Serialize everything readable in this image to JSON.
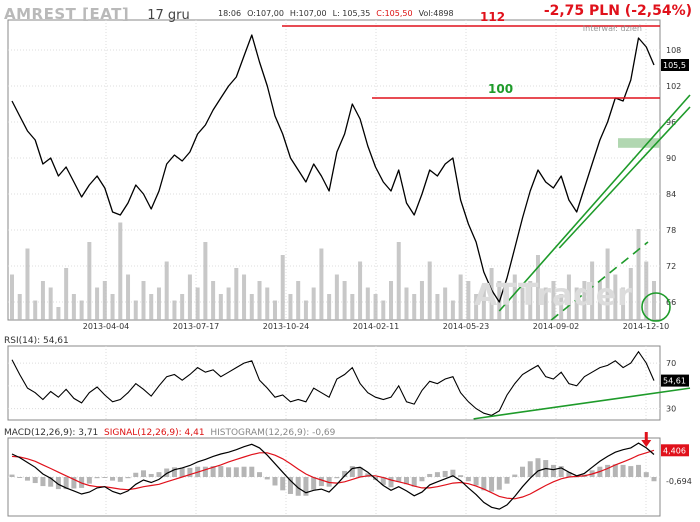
{
  "header": {
    "ticker": "AMREST [EAT]",
    "date": "17 gru",
    "time": "18:06",
    "open": "O:107,00",
    "high": "H:107,00",
    "low": "L: 105,35",
    "close": "C:105,50",
    "volume": "Vol:4898",
    "change": "-2,75 PLN (-2,54%)",
    "interval": "Interwał: dzień"
  },
  "watermark": "ATTrader",
  "rsi_label": "RSI(14): 54,61",
  "macd_label": {
    "macd": "MACD(12,26,9): 3,71",
    "signal": "SIGNAL(12,26,9): 4,41",
    "histogram": "HISTOGRAM(12,26,9): -0,69"
  },
  "colors": {
    "price_line": "#000000",
    "resistance": "#e0111b",
    "support_trend": "#1e9b2a",
    "support_zone": "#a9d3a9",
    "volume": "#b5b5b5",
    "grid": "#dcdcdc",
    "macd": "#000000",
    "signal": "#e0111b",
    "histogram": "#b5b5b5"
  },
  "chart_data": [
    {
      "type": "line",
      "panel": "price",
      "x_ticks": [
        "2013-04-04",
        "2013-07-17",
        "2013-10-24",
        "2014-02-11",
        "2014-05-23",
        "2014-09-02",
        "2014-12-10"
      ],
      "y_ticks": [
        66,
        72,
        78,
        84,
        90,
        96,
        102,
        108
      ],
      "ylim": [
        63,
        113
      ],
      "last_value_label": "105,5",
      "levels": [
        {
          "label": "112",
          "value": 112,
          "from": "2013-10-24",
          "to": "2014-12-17"
        },
        {
          "label": "100",
          "value": 100,
          "from": "2014-02-11",
          "to": "2014-12-17"
        }
      ],
      "series": [
        {
          "values": [
            99.5,
            97,
            94.5,
            93,
            89,
            90,
            87,
            88.5,
            86,
            83.5,
            85.5,
            87,
            85,
            81,
            80.5,
            82.5,
            85.5,
            84,
            81.5,
            84.5,
            89,
            90.5,
            89.5,
            91,
            94,
            95.5,
            98,
            100,
            102,
            103.5,
            107,
            110.5,
            106,
            102,
            97,
            94,
            90,
            88,
            86,
            89,
            87,
            84.5,
            91,
            94,
            99,
            96.5,
            92,
            88.5,
            86,
            84.5,
            88,
            82.5,
            80.5,
            84,
            88,
            87,
            89,
            90,
            83,
            79,
            76,
            71,
            68,
            66,
            70,
            75,
            80,
            84.5,
            88,
            86,
            85,
            87,
            83,
            81,
            85,
            89,
            93,
            96,
            100,
            99.5,
            103,
            110,
            108.5,
            105.5
          ]
        }
      ]
    },
    {
      "type": "bar",
      "panel": "volume",
      "series": [
        {
          "values": [
            0.35,
            0.2,
            0.55,
            0.15,
            0.3,
            0.25,
            0.1,
            0.4,
            0.2,
            0.15,
            0.6,
            0.25,
            0.3,
            0.2,
            0.75,
            0.35,
            0.15,
            0.3,
            0.2,
            0.25,
            0.45,
            0.15,
            0.2,
            0.35,
            0.25,
            0.6,
            0.3,
            0.2,
            0.25,
            0.4,
            0.35,
            0.2,
            0.3,
            0.25,
            0.15,
            0.5,
            0.2,
            0.3,
            0.15,
            0.25,
            0.55,
            0.2,
            0.35,
            0.3,
            0.2,
            0.45,
            0.25,
            0.2,
            0.15,
            0.3,
            0.6,
            0.25,
            0.2,
            0.3,
            0.45,
            0.2,
            0.25,
            0.15,
            0.35,
            0.3,
            0.2,
            0.25,
            0.4,
            0.3,
            0.2,
            0.35,
            0.25,
            0.3,
            0.5,
            0.25,
            0.3,
            0.2,
            0.35,
            0.25,
            0.3,
            0.45,
            0.3,
            0.55,
            0.35,
            0.25,
            0.4,
            0.7,
            0.45,
            0.3
          ]
        }
      ]
    },
    {
      "type": "line",
      "panel": "rsi",
      "y_ticks": [
        30,
        50,
        70
      ],
      "ylim": [
        20,
        85
      ],
      "last_value_label": "54,61",
      "series": [
        {
          "values": [
            73,
            60,
            48,
            44,
            38,
            45,
            40,
            47,
            39,
            35,
            44,
            49,
            42,
            36,
            38,
            44,
            52,
            47,
            41,
            50,
            58,
            60,
            55,
            60,
            66,
            62,
            64,
            58,
            62,
            66,
            70,
            72,
            55,
            48,
            40,
            42,
            36,
            38,
            36,
            48,
            44,
            40,
            56,
            60,
            66,
            52,
            44,
            40,
            38,
            40,
            50,
            36,
            34,
            46,
            54,
            52,
            56,
            58,
            44,
            36,
            30,
            26,
            24,
            28,
            42,
            52,
            60,
            64,
            68,
            58,
            56,
            62,
            52,
            50,
            58,
            62,
            66,
            68,
            72,
            66,
            70,
            80,
            70,
            54.61
          ]
        }
      ]
    },
    {
      "type": "line",
      "panel": "macd",
      "last_value_labels": [
        "4,406",
        "-0,694"
      ],
      "series": [
        {
          "name": "MACD(12,26,9)",
          "values": [
            3.8,
            3.2,
            2.4,
            1.6,
            0.5,
            -0.2,
            -1.2,
            -1.8,
            -2.3,
            -2.8,
            -2.5,
            -1.8,
            -1.6,
            -2.4,
            -2.8,
            -2.3,
            -1.2,
            -0.5,
            -0.9,
            -0.4,
            0.6,
            1.2,
            1.5,
            1.9,
            2.5,
            2.9,
            3.4,
            3.8,
            4.1,
            4.5,
            5.0,
            5.4,
            4.8,
            3.6,
            2.2,
            0.8,
            -0.6,
            -1.8,
            -2.6,
            -2.2,
            -2.0,
            -2.5,
            -1.2,
            0.2,
            1.4,
            1.6,
            0.8,
            -0.3,
            -1.4,
            -2.2,
            -1.6,
            -2.3,
            -3.1,
            -2.5,
            -1.3,
            -0.8,
            -0.3,
            0.2,
            -0.6,
            -1.8,
            -2.9,
            -4.2,
            -5.0,
            -5.3,
            -4.6,
            -3.2,
            -1.6,
            -0.2,
            1.0,
            1.4,
            1.2,
            1.5,
            0.8,
            0.2,
            0.6,
            1.6,
            2.6,
            3.4,
            4.1,
            4.5,
            4.8,
            5.6,
            4.8,
            3.71
          ]
        },
        {
          "name": "SIGNAL(12,26,9)",
          "values": [
            3.4,
            3.3,
            3.0,
            2.6,
            2.0,
            1.4,
            0.8,
            0.2,
            -0.4,
            -1.0,
            -1.4,
            -1.6,
            -1.6,
            -1.8,
            -2.0,
            -2.1,
            -1.9,
            -1.6,
            -1.4,
            -1.2,
            -0.8,
            -0.4,
            0.0,
            0.4,
            0.8,
            1.2,
            1.6,
            2.0,
            2.5,
            2.9,
            3.3,
            3.7,
            4.0,
            4.0,
            3.6,
            3.0,
            2.2,
            1.3,
            0.5,
            -0.1,
            -0.5,
            -0.9,
            -1.0,
            -0.8,
            -0.4,
            0.0,
            0.2,
            0.2,
            -0.1,
            -0.5,
            -0.8,
            -1.1,
            -1.5,
            -1.8,
            -1.8,
            -1.6,
            -1.3,
            -1.0,
            -0.9,
            -1.1,
            -1.5,
            -2.0,
            -2.6,
            -3.2,
            -3.5,
            -3.6,
            -3.3,
            -2.8,
            -2.1,
            -1.4,
            -0.8,
            -0.3,
            0.0,
            0.1,
            0.2,
            0.5,
            0.9,
            1.4,
            2.0,
            2.5,
            3.0,
            3.6,
            4.0,
            4.41
          ]
        }
      ]
    }
  ]
}
